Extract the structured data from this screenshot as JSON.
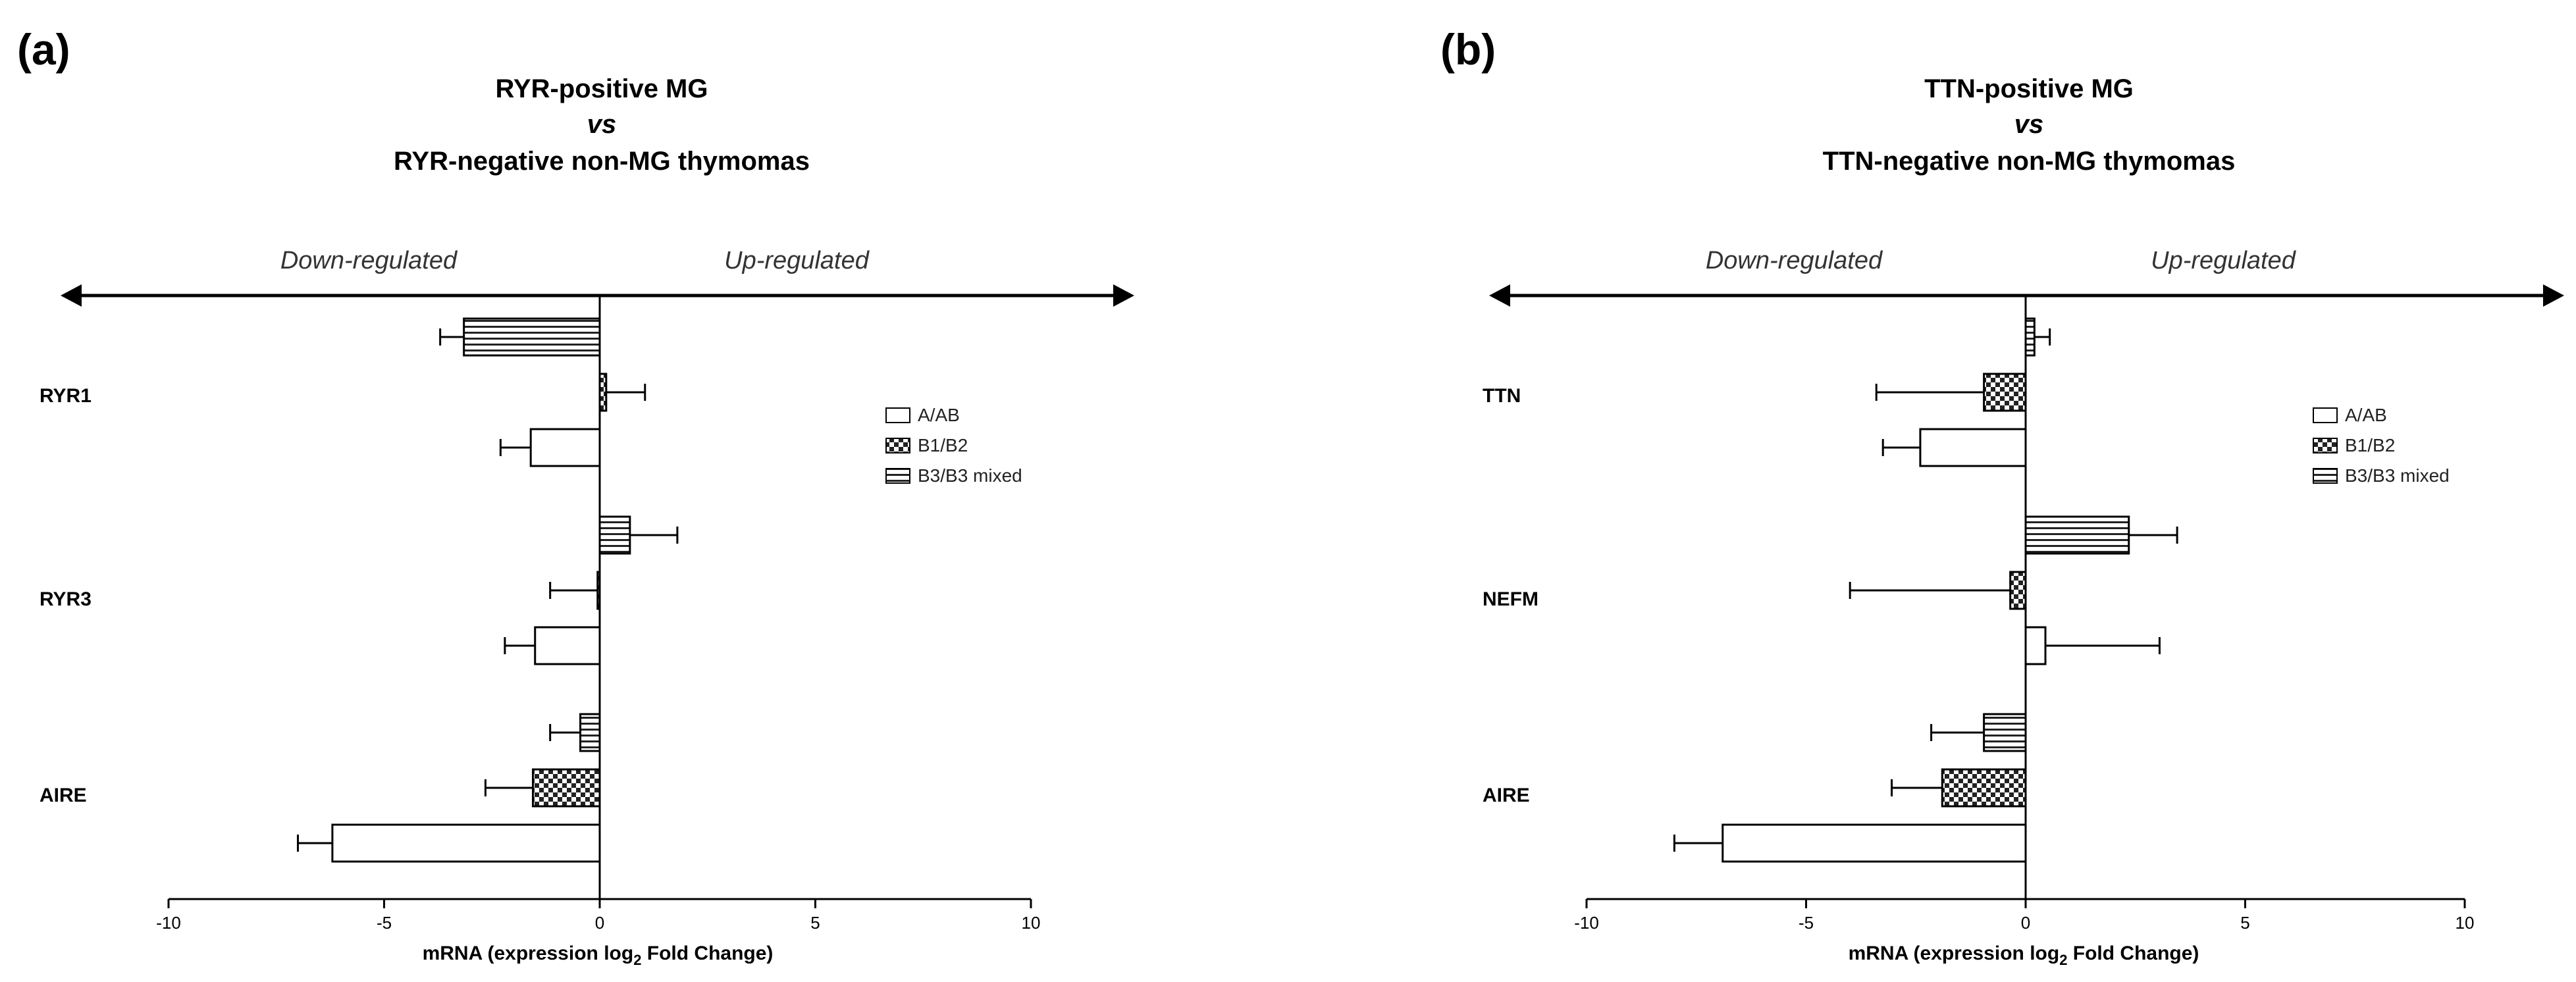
{
  "chart_data": [
    {
      "type": "bar",
      "panel_label": "(a)",
      "title": [
        "RYR-positive MG",
        "vs",
        "RYR-negative non-MG thymomas"
      ],
      "left_region_label": "Down-regulated",
      "right_region_label": "Up-regulated",
      "orientation": "horizontal",
      "categories": [
        "RYR1",
        "RYR3",
        "AIRE"
      ],
      "series": [
        {
          "name": "A/AB",
          "pattern": "blank",
          "values": [
            -1.6,
            -1.5,
            -6.2
          ],
          "errors": [
            0.7,
            0.7,
            0.8
          ]
        },
        {
          "name": "B1/B2",
          "pattern": "checker",
          "values": [
            0.15,
            -0.05,
            -1.55
          ],
          "errors": [
            0.9,
            1.1,
            1.1
          ]
        },
        {
          "name": "B3/B3 mixed",
          "pattern": "hstripe",
          "values": [
            -3.15,
            0.7,
            -0.45
          ],
          "errors": [
            0.55,
            1.1,
            0.7
          ]
        }
      ],
      "xlabel_main": "mRNA (expression log",
      "xlabel_sub": "2",
      "xlabel_tail": " Fold Change)",
      "xlim": [
        -10,
        10
      ],
      "xticks": [
        -10,
        -5,
        0,
        5,
        10
      ],
      "xtick_labels": [
        "-10",
        "-5",
        "0",
        "5",
        "10"
      ],
      "legend_position": "right",
      "grid": false
    },
    {
      "type": "bar",
      "panel_label": "(b)",
      "title": [
        "TTN-positive MG",
        "vs",
        "TTN-negative non-MG thymomas"
      ],
      "left_region_label": "Down-regulated",
      "right_region_label": "Up-regulated",
      "orientation": "horizontal",
      "categories": [
        "TTN",
        "NEFM",
        "AIRE"
      ],
      "series": [
        {
          "name": "A/AB",
          "pattern": "blank",
          "values": [
            -2.4,
            0.45,
            -6.9
          ],
          "errors": [
            0.85,
            2.6,
            1.1
          ]
        },
        {
          "name": "B1/B2",
          "pattern": "checker",
          "values": [
            -0.95,
            -0.35,
            -1.9
          ],
          "errors": [
            2.45,
            3.65,
            1.15
          ]
        },
        {
          "name": "B3/B3 mixed",
          "pattern": "hstripe",
          "values": [
            0.2,
            2.35,
            -0.95
          ],
          "errors": [
            0.35,
            1.1,
            1.2
          ]
        }
      ],
      "xlabel_main": "mRNA (expression log",
      "xlabel_sub": "2",
      "xlabel_tail": " Fold Change)",
      "xlim": [
        -10,
        10
      ],
      "xticks": [
        -10,
        -5,
        0,
        5,
        10
      ],
      "xtick_labels": [
        "-10",
        "-5",
        "0",
        "5",
        "10"
      ],
      "legend_position": "right",
      "grid": false
    }
  ]
}
